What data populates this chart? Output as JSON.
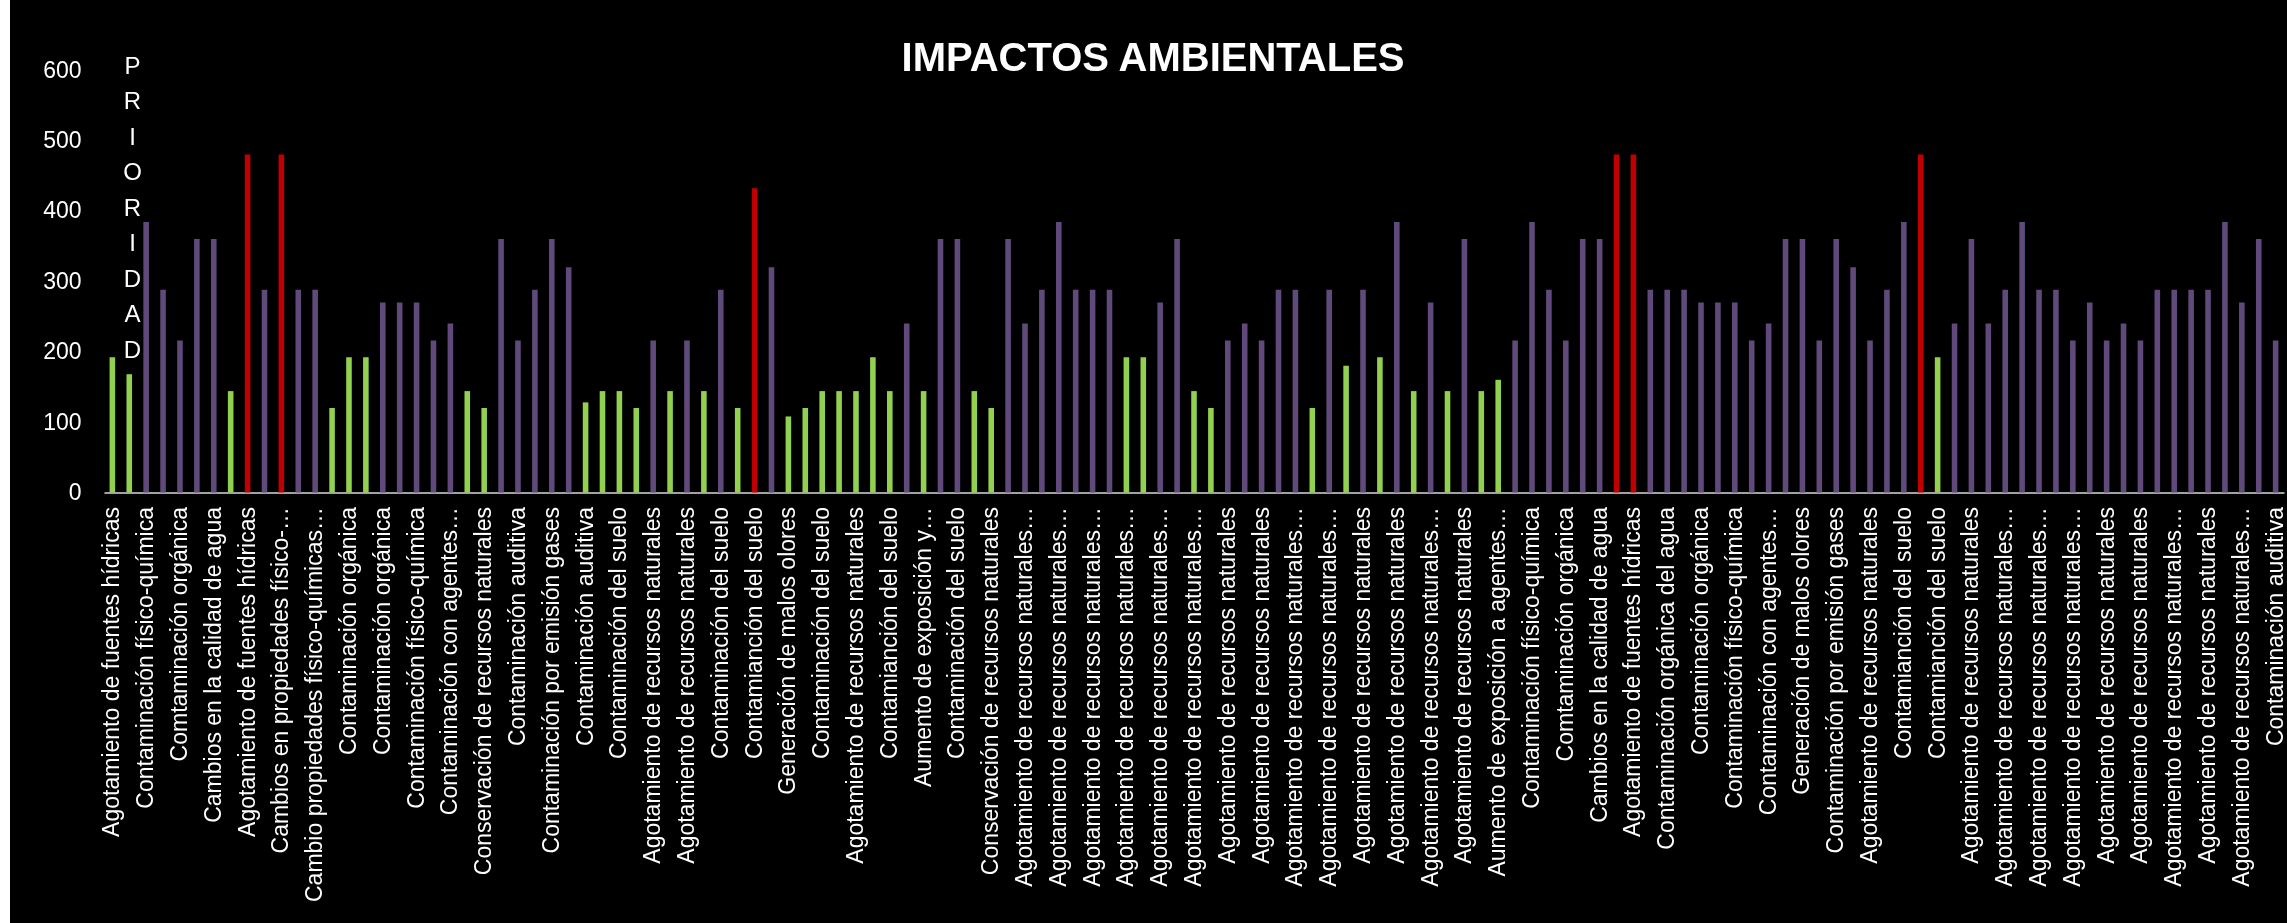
{
  "chart_data": {
    "type": "bar",
    "title": "IMPACTOS AMBIENTALES",
    "ylabel": "PRIORIDAD",
    "categories": [
      "Agotamiento de fuentes hídricas",
      null,
      "Contaminación físico-química",
      null,
      "Comtaminación orgánica",
      null,
      "Cambios en la calidad de agua",
      null,
      "Agotamiento de fuentes hídricas",
      null,
      "Cambios en propiedades físico-…",
      null,
      "Cambio propiedades físico-químicas…",
      null,
      "Contaminación orgánica",
      null,
      "Contaminación orgánica",
      null,
      "Contaminación físico-química",
      null,
      "Contaminación con agentes…",
      null,
      "Conservación de recursos naturales",
      null,
      "Contaminación auditiva",
      null,
      "Contaminación por emisión gases",
      null,
      "Contaminación auditiva",
      null,
      "Contaminación del suelo",
      null,
      "Agotamiento de recursos naturales",
      null,
      "Agotamiento de recursos naturales",
      null,
      "Contaminación del suelo",
      null,
      "Contamianción del suelo",
      null,
      "Generación de malos olores",
      null,
      "Contaminación del suelo",
      null,
      "Agotamiento de recursos naturales",
      null,
      "Contamianción del suelo",
      null,
      "Aumento de exposición y…",
      null,
      "Contaminación del suelo",
      null,
      "Conservación de recursos naturales",
      null,
      "Agotamiento de recursos naturales…",
      null,
      "Agotamiento de recursos naturales…",
      null,
      "Agotamiento de recursos naturales…",
      null,
      "Agotamiento de recursos naturales…",
      null,
      "Agotamiento de recursos naturales…",
      null,
      "Agotamiento de recursos naturales…",
      null,
      "Agotamiento de recursos naturales",
      null,
      "Agotamiento de recursos naturales",
      null,
      "Agotamiento de recursos naturales…",
      null,
      "Agotamiento de recursos naturales…",
      null,
      "Agotamiento de recursos naturales",
      null,
      "Agotamiento de recursos naturales",
      null,
      "Agotamiento de recursos naturales…",
      null,
      "Agotamiento de recursos naturales",
      null,
      "Aumento de exposición a agentes…",
      null,
      "Contaminación físico-química",
      null,
      "Comtaminación orgánica",
      null,
      "Cambios en la calidad de agua",
      null,
      "Agotamiento de fuentes hídricas",
      null,
      "Contaminación orgánica del agua",
      null,
      "Contaminación orgánica",
      null,
      "Contaminación físico-química",
      null,
      "Contaminación con agentes…",
      null,
      "Generación de malos olores",
      null,
      "Contaminación por emisión gases",
      null,
      "Agotamiento de recursos naturales",
      null,
      "Contamianción del suelo",
      null,
      "Contamianción del suelo",
      null,
      "Agotamiento de recursos naturales",
      null,
      "Agotamiento de recursos naturales…",
      null,
      "Agotamiento de recursos naturales…",
      null,
      "Agotamiento de recursos naturales…",
      null,
      "Agotamiento de recursos naturales",
      null,
      "Agotamiento de recursos naturales",
      null,
      "Agotamiento de recursos naturales…",
      null,
      "Agotamiento de recursos naturales",
      null,
      "Agotamiento de recursos naturales…",
      null,
      "Contaminación auditiva"
    ],
    "values": [
      192,
      168,
      384,
      288,
      216,
      360,
      360,
      144,
      480,
      288,
      480,
      288,
      288,
      120,
      192,
      192,
      270,
      270,
      270,
      216,
      240,
      144,
      120,
      360,
      216,
      288,
      360,
      320,
      128,
      144,
      144,
      120,
      216,
      144,
      216,
      144,
      288,
      120,
      432,
      320,
      108,
      120,
      144,
      144,
      144,
      192,
      144,
      240,
      144,
      360,
      360,
      144,
      120,
      360,
      240,
      288,
      384,
      288,
      288,
      288,
      192,
      192,
      270,
      360,
      144,
      120,
      216,
      240,
      216,
      288,
      288,
      120,
      288,
      180,
      288,
      192,
      384,
      144,
      270,
      144,
      360,
      144,
      160,
      216,
      384,
      288,
      216,
      360,
      360,
      480,
      480,
      288,
      288,
      288,
      270,
      270,
      270,
      216,
      240,
      360,
      360,
      216,
      360,
      320,
      216,
      288,
      384,
      480,
      192,
      240,
      360,
      240,
      288,
      384,
      288,
      288,
      216,
      270,
      216,
      240,
      216,
      288,
      288,
      288,
      288,
      384,
      270,
      360,
      216
    ],
    "colors": [
      "#92d050",
      "#92d050",
      "#604a7b",
      "#604a7b",
      "#604a7b",
      "#604a7b",
      "#604a7b",
      "#92d050",
      "#c00000",
      "#604a7b",
      "#c00000",
      "#604a7b",
      "#604a7b",
      "#92d050",
      "#92d050",
      "#92d050",
      "#604a7b",
      "#604a7b",
      "#604a7b",
      "#604a7b",
      "#604a7b",
      "#92d050",
      "#92d050",
      "#604a7b",
      "#604a7b",
      "#604a7b",
      "#604a7b",
      "#604a7b",
      "#92d050",
      "#92d050",
      "#92d050",
      "#92d050",
      "#604a7b",
      "#92d050",
      "#604a7b",
      "#92d050",
      "#604a7b",
      "#92d050",
      "#c00000",
      "#604a7b",
      "#92d050",
      "#92d050",
      "#92d050",
      "#92d050",
      "#92d050",
      "#92d050",
      "#92d050",
      "#604a7b",
      "#92d050",
      "#604a7b",
      "#604a7b",
      "#92d050",
      "#92d050",
      "#604a7b",
      "#604a7b",
      "#604a7b",
      "#604a7b",
      "#604a7b",
      "#604a7b",
      "#604a7b",
      "#92d050",
      "#92d050",
      "#604a7b",
      "#604a7b",
      "#92d050",
      "#92d050",
      "#604a7b",
      "#604a7b",
      "#604a7b",
      "#604a7b",
      "#604a7b",
      "#92d050",
      "#604a7b",
      "#92d050",
      "#604a7b",
      "#92d050",
      "#604a7b",
      "#92d050",
      "#604a7b",
      "#92d050",
      "#604a7b",
      "#92d050",
      "#92d050",
      "#604a7b",
      "#604a7b",
      "#604a7b",
      "#604a7b",
      "#604a7b",
      "#604a7b",
      "#c00000",
      "#c00000",
      "#604a7b",
      "#604a7b",
      "#604a7b",
      "#604a7b",
      "#604a7b",
      "#604a7b",
      "#604a7b",
      "#604a7b",
      "#604a7b",
      "#604a7b",
      "#604a7b",
      "#604a7b",
      "#604a7b",
      "#604a7b",
      "#604a7b",
      "#604a7b",
      "#c00000",
      "#92d050",
      "#604a7b",
      "#604a7b",
      "#604a7b",
      "#604a7b",
      "#604a7b",
      "#604a7b",
      "#604a7b",
      "#604a7b",
      "#604a7b",
      "#604a7b",
      "#604a7b",
      "#604a7b",
      "#604a7b",
      "#604a7b",
      "#604a7b",
      "#604a7b",
      "#604a7b",
      "#604a7b",
      "#604a7b",
      "#604a7b"
    ],
    "ylim": [
      0,
      600
    ],
    "yticks": [
      0,
      100,
      200,
      300,
      400,
      500,
      600
    ]
  }
}
